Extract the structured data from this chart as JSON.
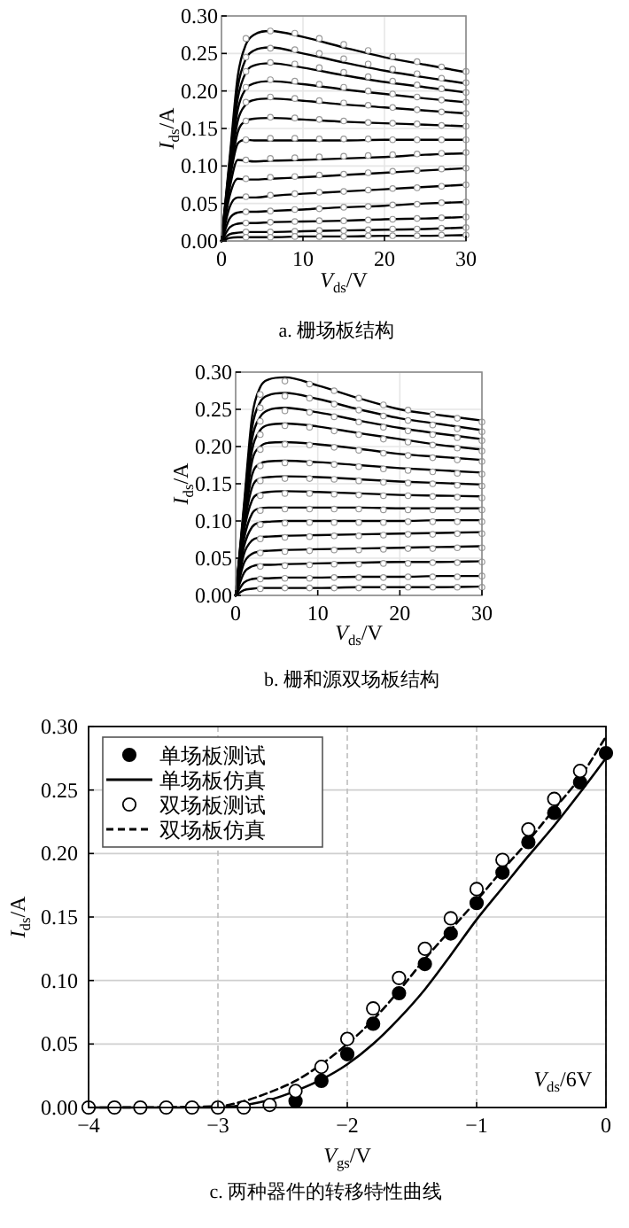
{
  "chart_data": [
    {
      "type": "line",
      "title": "a. 栅场板结构",
      "xlabel": "*V*$_{ds}$/V",
      "ylabel": "*I*$_{ds}$/A",
      "xlim": [
        0,
        30
      ],
      "ylim": [
        0,
        0.3
      ],
      "xticks": [
        0,
        10,
        20,
        30
      ],
      "yticks": [
        {
          "value": 0,
          "label": "0.00"
        },
        {
          "value": 0.05,
          "label": "0.05"
        },
        {
          "value": 0.1,
          "label": "0.10"
        },
        {
          "value": 0.15,
          "label": "0.15"
        },
        {
          "value": 0.2,
          "label": "0.20"
        },
        {
          "value": 0.25,
          "label": "0.25"
        },
        {
          "value": 0.3,
          "label": "0.30"
        }
      ],
      "grid": true,
      "legend": false,
      "x": [
        0,
        1,
        2,
        3,
        4,
        6,
        10,
        15,
        20,
        25,
        30
      ],
      "series": [
        {
          "color": "#000000",
          "values": [
            0,
            0.11,
            0.22,
            0.262,
            0.275,
            0.28,
            0.272,
            0.258,
            0.245,
            0.235,
            0.225
          ]
        },
        {
          "color": "#000000",
          "values": [
            0,
            0.105,
            0.205,
            0.243,
            0.254,
            0.258,
            0.25,
            0.238,
            0.227,
            0.218,
            0.21
          ]
        },
        {
          "color": "#000000",
          "values": [
            0,
            0.1,
            0.19,
            0.225,
            0.234,
            0.237,
            0.231,
            0.221,
            0.212,
            0.205,
            0.198
          ]
        },
        {
          "color": "#000000",
          "values": [
            0,
            0.095,
            0.175,
            0.203,
            0.21,
            0.213,
            0.209,
            0.202,
            0.196,
            0.19,
            0.185
          ]
        },
        {
          "color": "#000000",
          "values": [
            0,
            0.09,
            0.16,
            0.182,
            0.188,
            0.19,
            0.187,
            0.182,
            0.178,
            0.174,
            0.17
          ]
        },
        {
          "color": "#000000",
          "values": [
            0,
            0.085,
            0.145,
            0.16,
            0.163,
            0.164,
            0.162,
            0.159,
            0.157,
            0.155,
            0.153
          ]
        },
        {
          "color": "#000000",
          "values": [
            0,
            0.08,
            0.13,
            0.135,
            0.134,
            0.134,
            0.134,
            0.134,
            0.135,
            0.135,
            0.135
          ]
        },
        {
          "color": "#000000",
          "values": [
            0,
            0.07,
            0.108,
            0.107,
            0.106,
            0.107,
            0.108,
            0.11,
            0.112,
            0.115,
            0.117
          ]
        },
        {
          "color": "#000000",
          "values": [
            0,
            0.06,
            0.083,
            0.082,
            0.082,
            0.083,
            0.085,
            0.088,
            0.091,
            0.094,
            0.097
          ]
        },
        {
          "color": "#000000",
          "values": [
            0,
            0.045,
            0.058,
            0.058,
            0.058,
            0.06,
            0.063,
            0.066,
            0.069,
            0.072,
            0.075
          ]
        },
        {
          "color": "#000000",
          "values": [
            0,
            0.03,
            0.038,
            0.039,
            0.039,
            0.04,
            0.042,
            0.045,
            0.047,
            0.05,
            0.052
          ]
        },
        {
          "color": "#000000",
          "values": [
            0,
            0.018,
            0.023,
            0.024,
            0.024,
            0.025,
            0.026,
            0.027,
            0.029,
            0.03,
            0.032
          ]
        },
        {
          "color": "#000000",
          "values": [
            0,
            0.009,
            0.011,
            0.012,
            0.012,
            0.012,
            0.013,
            0.014,
            0.015,
            0.016,
            0.018
          ]
        },
        {
          "color": "#000000",
          "values": [
            0,
            0.004,
            0.005,
            0.005,
            0.005,
            0.005,
            0.006,
            0.006,
            0.007,
            0.007,
            0.008
          ]
        },
        {
          "type": "scatter",
          "marker": "circle",
          "color": "#ffffff",
          "x": [
            3,
            6,
            9,
            12,
            15,
            18,
            21,
            24,
            27,
            30
          ],
          "values": [
            0.27,
            0.28,
            0.277,
            0.27,
            0.262,
            0.254,
            0.246,
            0.239,
            0.232,
            0.226
          ]
        },
        {
          "type": "scatter",
          "marker": "circle",
          "color": "#ffffff",
          "x": [
            3,
            6,
            9,
            12,
            15,
            18,
            21,
            24,
            27,
            30
          ],
          "values": [
            0.245,
            0.257,
            0.255,
            0.25,
            0.243,
            0.236,
            0.229,
            0.223,
            0.217,
            0.211
          ]
        },
        {
          "type": "scatter",
          "marker": "circle",
          "color": "#ffffff",
          "x": [
            3,
            6,
            9,
            12,
            15,
            18,
            21,
            24,
            27,
            30
          ],
          "values": [
            0.226,
            0.238,
            0.236,
            0.231,
            0.225,
            0.219,
            0.213,
            0.208,
            0.203,
            0.198
          ]
        },
        {
          "type": "scatter",
          "marker": "circle",
          "color": "#ffffff",
          "x": [
            3,
            6,
            9,
            12,
            15,
            18,
            21,
            24,
            27,
            30
          ],
          "values": [
            0.205,
            0.215,
            0.213,
            0.209,
            0.205,
            0.2,
            0.196,
            0.192,
            0.188,
            0.185
          ]
        },
        {
          "type": "scatter",
          "marker": "circle",
          "color": "#ffffff",
          "x": [
            3,
            6,
            9,
            12,
            15,
            18,
            21,
            24,
            27,
            30
          ],
          "values": [
            0.185,
            0.192,
            0.19,
            0.187,
            0.184,
            0.181,
            0.178,
            0.175,
            0.172,
            0.17
          ]
        },
        {
          "type": "scatter",
          "marker": "circle",
          "color": "#ffffff",
          "x": [
            3,
            6,
            9,
            12,
            15,
            18,
            21,
            24,
            27,
            30
          ],
          "values": [
            0.16,
            0.165,
            0.164,
            0.162,
            0.16,
            0.158,
            0.157,
            0.156,
            0.154,
            0.153
          ]
        },
        {
          "type": "scatter",
          "marker": "circle",
          "color": "#ffffff",
          "x": [
            3,
            6,
            9,
            12,
            15,
            18,
            21,
            24,
            27,
            30
          ],
          "values": [
            0.135,
            0.137,
            0.137,
            0.136,
            0.136,
            0.136,
            0.135,
            0.135,
            0.135,
            0.135
          ]
        },
        {
          "type": "scatter",
          "marker": "circle",
          "color": "#ffffff",
          "x": [
            3,
            6,
            9,
            12,
            15,
            18,
            21,
            24,
            27,
            30
          ],
          "values": [
            0.108,
            0.11,
            0.111,
            0.112,
            0.113,
            0.114,
            0.115,
            0.116,
            0.117,
            0.118
          ]
        },
        {
          "type": "scatter",
          "marker": "circle",
          "color": "#ffffff",
          "x": [
            3,
            6,
            9,
            12,
            15,
            18,
            21,
            24,
            27,
            30
          ],
          "values": [
            0.083,
            0.085,
            0.086,
            0.088,
            0.089,
            0.091,
            0.093,
            0.094,
            0.096,
            0.097
          ]
        },
        {
          "type": "scatter",
          "marker": "circle",
          "color": "#ffffff",
          "x": [
            3,
            6,
            9,
            12,
            15,
            18,
            21,
            24,
            27,
            30
          ],
          "values": [
            0.059,
            0.061,
            0.063,
            0.065,
            0.066,
            0.068,
            0.07,
            0.071,
            0.073,
            0.075
          ]
        },
        {
          "type": "scatter",
          "marker": "circle",
          "color": "#ffffff",
          "x": [
            3,
            6,
            9,
            12,
            15,
            18,
            21,
            24,
            27,
            30
          ],
          "values": [
            0.039,
            0.04,
            0.042,
            0.043,
            0.045,
            0.046,
            0.048,
            0.049,
            0.051,
            0.052
          ]
        },
        {
          "type": "scatter",
          "marker": "circle",
          "color": "#ffffff",
          "x": [
            3,
            6,
            9,
            12,
            15,
            18,
            21,
            24,
            27,
            30
          ],
          "values": [
            0.024,
            0.025,
            0.026,
            0.027,
            0.027,
            0.028,
            0.029,
            0.03,
            0.031,
            0.032
          ]
        },
        {
          "type": "scatter",
          "marker": "circle",
          "color": "#ffffff",
          "x": [
            3,
            6,
            9,
            12,
            15,
            18,
            21,
            24,
            27,
            30
          ],
          "values": [
            0.012,
            0.012,
            0.013,
            0.014,
            0.014,
            0.015,
            0.016,
            0.016,
            0.017,
            0.018
          ]
        },
        {
          "type": "scatter",
          "marker": "circle",
          "color": "#ffffff",
          "x": [
            3,
            6,
            9,
            12,
            15,
            18,
            21,
            24,
            27,
            30
          ],
          "values": [
            0.005,
            0.005,
            0.006,
            0.006,
            0.006,
            0.007,
            0.007,
            0.007,
            0.008,
            0.008
          ]
        }
      ]
    },
    {
      "type": "line",
      "title": "b. 栅和源双场板结构",
      "xlabel": "*V*$_{ds}$/V",
      "ylabel": "*I*$_{ds}$/A",
      "xlim": [
        0,
        30
      ],
      "ylim": [
        0,
        0.3
      ],
      "xticks": [
        0,
        10,
        20,
        30
      ],
      "yticks": [
        {
          "value": 0,
          "label": "0.00"
        },
        {
          "value": 0.05,
          "label": "0.05"
        },
        {
          "value": 0.1,
          "label": "0.10"
        },
        {
          "value": 0.15,
          "label": "0.15"
        },
        {
          "value": 0.2,
          "label": "0.20"
        },
        {
          "value": 0.25,
          "label": "0.25"
        },
        {
          "value": 0.3,
          "label": "0.30"
        }
      ],
      "grid": true,
      "legend": false,
      "x": [
        0,
        1,
        2,
        3,
        4,
        6,
        10,
        15,
        20,
        25,
        30
      ],
      "series": [
        {
          "color": "#000000",
          "values": [
            0,
            0.12,
            0.24,
            0.28,
            0.29,
            0.293,
            0.282,
            0.265,
            0.25,
            0.242,
            0.235
          ]
        },
        {
          "color": "#000000",
          "values": [
            0,
            0.115,
            0.225,
            0.26,
            0.269,
            0.272,
            0.264,
            0.25,
            0.238,
            0.23,
            0.222
          ]
        },
        {
          "color": "#000000",
          "values": [
            0,
            0.11,
            0.21,
            0.24,
            0.249,
            0.252,
            0.246,
            0.235,
            0.225,
            0.217,
            0.21
          ]
        },
        {
          "color": "#000000",
          "values": [
            0,
            0.105,
            0.195,
            0.222,
            0.229,
            0.231,
            0.227,
            0.218,
            0.21,
            0.202,
            0.196
          ]
        },
        {
          "color": "#000000",
          "values": [
            0,
            0.1,
            0.18,
            0.2,
            0.205,
            0.206,
            0.203,
            0.197,
            0.19,
            0.186,
            0.182
          ]
        },
        {
          "color": "#000000",
          "values": [
            0,
            0.095,
            0.162,
            0.177,
            0.18,
            0.181,
            0.179,
            0.175,
            0.171,
            0.168,
            0.165
          ]
        },
        {
          "color": "#000000",
          "values": [
            0,
            0.09,
            0.145,
            0.157,
            0.159,
            0.16,
            0.159,
            0.156,
            0.153,
            0.151,
            0.149
          ]
        },
        {
          "color": "#000000",
          "values": [
            0,
            0.085,
            0.128,
            0.137,
            0.139,
            0.14,
            0.139,
            0.137,
            0.135,
            0.134,
            0.133
          ]
        },
        {
          "color": "#000000",
          "values": [
            0,
            0.075,
            0.11,
            0.117,
            0.118,
            0.118,
            0.118,
            0.118,
            0.117,
            0.117,
            0.117
          ]
        },
        {
          "color": "#000000",
          "values": [
            0,
            0.065,
            0.092,
            0.098,
            0.099,
            0.1,
            0.1,
            0.1,
            0.1,
            0.101,
            0.101
          ]
        },
        {
          "color": "#000000",
          "values": [
            0,
            0.055,
            0.074,
            0.078,
            0.079,
            0.08,
            0.081,
            0.082,
            0.083,
            0.084,
            0.085
          ]
        },
        {
          "color": "#000000",
          "values": [
            0,
            0.043,
            0.056,
            0.059,
            0.06,
            0.061,
            0.062,
            0.063,
            0.064,
            0.065,
            0.066
          ]
        },
        {
          "color": "#000000",
          "values": [
            0,
            0.03,
            0.039,
            0.041,
            0.041,
            0.042,
            0.043,
            0.044,
            0.045,
            0.045,
            0.046
          ]
        },
        {
          "color": "#000000",
          "values": [
            0,
            0.017,
            0.022,
            0.023,
            0.023,
            0.024,
            0.024,
            0.025,
            0.025,
            0.026,
            0.026
          ]
        },
        {
          "color": "#000000",
          "values": [
            0,
            0.007,
            0.009,
            0.01,
            0.01,
            0.01,
            0.01,
            0.011,
            0.011,
            0.011,
            0.012
          ]
        },
        {
          "type": "scatter",
          "marker": "circle",
          "color": "#ffffff",
          "x": [
            3,
            6,
            9,
            12,
            15,
            18,
            21,
            24,
            27,
            30
          ],
          "values": [
            0.27,
            0.288,
            0.284,
            0.275,
            0.265,
            0.256,
            0.249,
            0.243,
            0.238,
            0.233
          ]
        },
        {
          "type": "scatter",
          "marker": "circle",
          "color": "#ffffff",
          "x": [
            3,
            6,
            9,
            12,
            15,
            18,
            21,
            24,
            27,
            30
          ],
          "values": [
            0.252,
            0.268,
            0.265,
            0.257,
            0.249,
            0.241,
            0.235,
            0.229,
            0.224,
            0.22
          ]
        },
        {
          "type": "scatter",
          "marker": "circle",
          "color": "#ffffff",
          "x": [
            3,
            6,
            9,
            12,
            15,
            18,
            21,
            24,
            27,
            30
          ],
          "values": [
            0.234,
            0.248,
            0.246,
            0.24,
            0.233,
            0.226,
            0.221,
            0.216,
            0.212,
            0.208
          ]
        },
        {
          "type": "scatter",
          "marker": "circle",
          "color": "#ffffff",
          "x": [
            3,
            6,
            9,
            12,
            15,
            18,
            21,
            24,
            27,
            30
          ],
          "values": [
            0.216,
            0.228,
            0.226,
            0.221,
            0.216,
            0.21,
            0.206,
            0.202,
            0.198,
            0.194
          ]
        },
        {
          "type": "scatter",
          "marker": "circle",
          "color": "#ffffff",
          "x": [
            3,
            6,
            9,
            12,
            15,
            18,
            21,
            24,
            27,
            30
          ],
          "values": [
            0.196,
            0.203,
            0.202,
            0.199,
            0.195,
            0.191,
            0.188,
            0.185,
            0.182,
            0.18
          ]
        },
        {
          "type": "scatter",
          "marker": "circle",
          "color": "#ffffff",
          "x": [
            3,
            6,
            9,
            12,
            15,
            18,
            21,
            24,
            27,
            30
          ],
          "values": [
            0.174,
            0.178,
            0.178,
            0.176,
            0.173,
            0.17,
            0.168,
            0.166,
            0.164,
            0.163
          ]
        },
        {
          "type": "scatter",
          "marker": "circle",
          "color": "#ffffff",
          "x": [
            3,
            6,
            9,
            12,
            15,
            18,
            21,
            24,
            27,
            30
          ],
          "values": [
            0.154,
            0.157,
            0.157,
            0.156,
            0.154,
            0.152,
            0.151,
            0.15,
            0.148,
            0.147
          ]
        },
        {
          "type": "scatter",
          "marker": "circle",
          "color": "#ffffff",
          "x": [
            3,
            6,
            9,
            12,
            15,
            18,
            21,
            24,
            27,
            30
          ],
          "values": [
            0.134,
            0.137,
            0.137,
            0.136,
            0.135,
            0.134,
            0.134,
            0.133,
            0.132,
            0.131
          ]
        },
        {
          "type": "scatter",
          "marker": "circle",
          "color": "#ffffff",
          "x": [
            3,
            6,
            9,
            12,
            15,
            18,
            21,
            24,
            27,
            30
          ],
          "values": [
            0.114,
            0.116,
            0.116,
            0.116,
            0.116,
            0.115,
            0.115,
            0.115,
            0.115,
            0.115
          ]
        },
        {
          "type": "scatter",
          "marker": "circle",
          "color": "#ffffff",
          "x": [
            3,
            6,
            9,
            12,
            15,
            18,
            21,
            24,
            27,
            30
          ],
          "values": [
            0.095,
            0.097,
            0.098,
            0.098,
            0.098,
            0.098,
            0.099,
            0.099,
            0.099,
            0.099
          ]
        },
        {
          "type": "scatter",
          "marker": "circle",
          "color": "#ffffff",
          "x": [
            3,
            6,
            9,
            12,
            15,
            18,
            21,
            24,
            27,
            30
          ],
          "values": [
            0.076,
            0.078,
            0.079,
            0.08,
            0.08,
            0.081,
            0.082,
            0.082,
            0.083,
            0.083
          ]
        },
        {
          "type": "scatter",
          "marker": "circle",
          "color": "#ffffff",
          "x": [
            3,
            6,
            9,
            12,
            15,
            18,
            21,
            24,
            27,
            30
          ],
          "values": [
            0.057,
            0.059,
            0.06,
            0.061,
            0.061,
            0.062,
            0.063,
            0.063,
            0.064,
            0.064
          ]
        },
        {
          "type": "scatter",
          "marker": "circle",
          "color": "#ffffff",
          "x": [
            3,
            6,
            9,
            12,
            15,
            18,
            21,
            24,
            27,
            30
          ],
          "values": [
            0.039,
            0.04,
            0.041,
            0.042,
            0.042,
            0.043,
            0.043,
            0.044,
            0.044,
            0.045
          ]
        },
        {
          "type": "scatter",
          "marker": "circle",
          "color": "#ffffff",
          "x": [
            3,
            6,
            9,
            12,
            15,
            18,
            21,
            24,
            27,
            30
          ],
          "values": [
            0.022,
            0.023,
            0.023,
            0.024,
            0.024,
            0.024,
            0.025,
            0.025,
            0.025,
            0.026
          ]
        },
        {
          "type": "scatter",
          "marker": "circle",
          "color": "#ffffff",
          "x": [
            3,
            6,
            9,
            12,
            15,
            18,
            21,
            24,
            27,
            30
          ],
          "values": [
            0.009,
            0.01,
            0.01,
            0.01,
            0.01,
            0.011,
            0.011,
            0.011,
            0.011,
            0.011
          ]
        }
      ]
    },
    {
      "type": "line",
      "title": "c. 两种器件的转移特性曲线",
      "xlabel": "*V*$_{gs}$/V",
      "ylabel": "*I*$_{ds}$/A",
      "xlim": [
        -4,
        0
      ],
      "ylim": [
        0,
        0.3
      ],
      "xticks": [
        {
          "value": -4,
          "label": "−4"
        },
        {
          "value": -3,
          "label": "−3"
        },
        {
          "value": -2,
          "label": "−2"
        },
        {
          "value": -1,
          "label": "−1"
        },
        0
      ],
      "yticks": [
        {
          "value": 0,
          "label": "0.00"
        },
        {
          "value": 0.05,
          "label": "0.05"
        },
        {
          "value": 0.1,
          "label": "0.10"
        },
        {
          "value": 0.15,
          "label": "0.15"
        },
        {
          "value": 0.2,
          "label": "0.20"
        },
        {
          "value": 0.25,
          "label": "0.25"
        },
        {
          "value": 0.3,
          "label": "0.30"
        }
      ],
      "grid": true,
      "legend": "top left",
      "annotations": [
        "*V*$_{ds}$/6V"
      ],
      "series": [
        {
          "name": "单场板测试",
          "type": "scatter",
          "marker": "circle",
          "color": "#000000",
          "x": [
            -2.4,
            -2.2,
            -2.0,
            -1.8,
            -1.6,
            -1.4,
            -1.2,
            -1.0,
            -0.8,
            -0.6,
            -0.4,
            -0.2,
            0
          ],
          "values": [
            0.005,
            0.021,
            0.042,
            0.066,
            0.09,
            0.113,
            0.137,
            0.161,
            0.185,
            0.209,
            0.232,
            0.256,
            0.279
          ]
        },
        {
          "name": "单场板仿真",
          "type": "line",
          "color": "#000000",
          "line_style": "solid",
          "x": [
            -4,
            -3,
            -2.8,
            -2.6,
            -2.4,
            -2.2,
            -2,
            -1.8,
            -1.6,
            -1.4,
            -1.2,
            -1,
            -0.8,
            -0.6,
            -0.4,
            -0.2,
            0
          ],
          "values": [
            0,
            0,
            0.002,
            0.006,
            0.013,
            0.022,
            0.034,
            0.05,
            0.07,
            0.093,
            0.12,
            0.148,
            0.173,
            0.198,
            0.222,
            0.248,
            0.275
          ]
        },
        {
          "name": "双场板测试",
          "type": "scatter",
          "marker": "circle",
          "color": "#ffffff",
          "x": [
            -4,
            -3.8,
            -3.6,
            -3.4,
            -3.2,
            -3.0,
            -2.8,
            -2.6,
            -2.4,
            -2.2,
            -2.0,
            -1.8,
            -1.6,
            -1.4,
            -1.2,
            -1.0,
            -0.8,
            -0.6,
            -0.4,
            -0.2
          ],
          "values": [
            0,
            0,
            0,
            0,
            0,
            0,
            0,
            0.002,
            0.013,
            0.032,
            0.054,
            0.078,
            0.102,
            0.125,
            0.149,
            0.172,
            0.195,
            0.219,
            0.243,
            0.265
          ]
        },
        {
          "name": "双场板仿真",
          "type": "line",
          "color": "#000000",
          "line_style": "dashed",
          "x": [
            -4,
            -3,
            -2.8,
            -2.6,
            -2.4,
            -2.2,
            -2,
            -1.8,
            -1.6,
            -1.4,
            -1.2,
            -1,
            -0.8,
            -0.6,
            -0.4,
            -0.2,
            0
          ],
          "values": [
            0,
            0.001,
            0.005,
            0.012,
            0.021,
            0.034,
            0.05,
            0.069,
            0.092,
            0.117,
            0.14,
            0.163,
            0.187,
            0.21,
            0.235,
            0.26,
            0.292
          ]
        }
      ]
    }
  ]
}
